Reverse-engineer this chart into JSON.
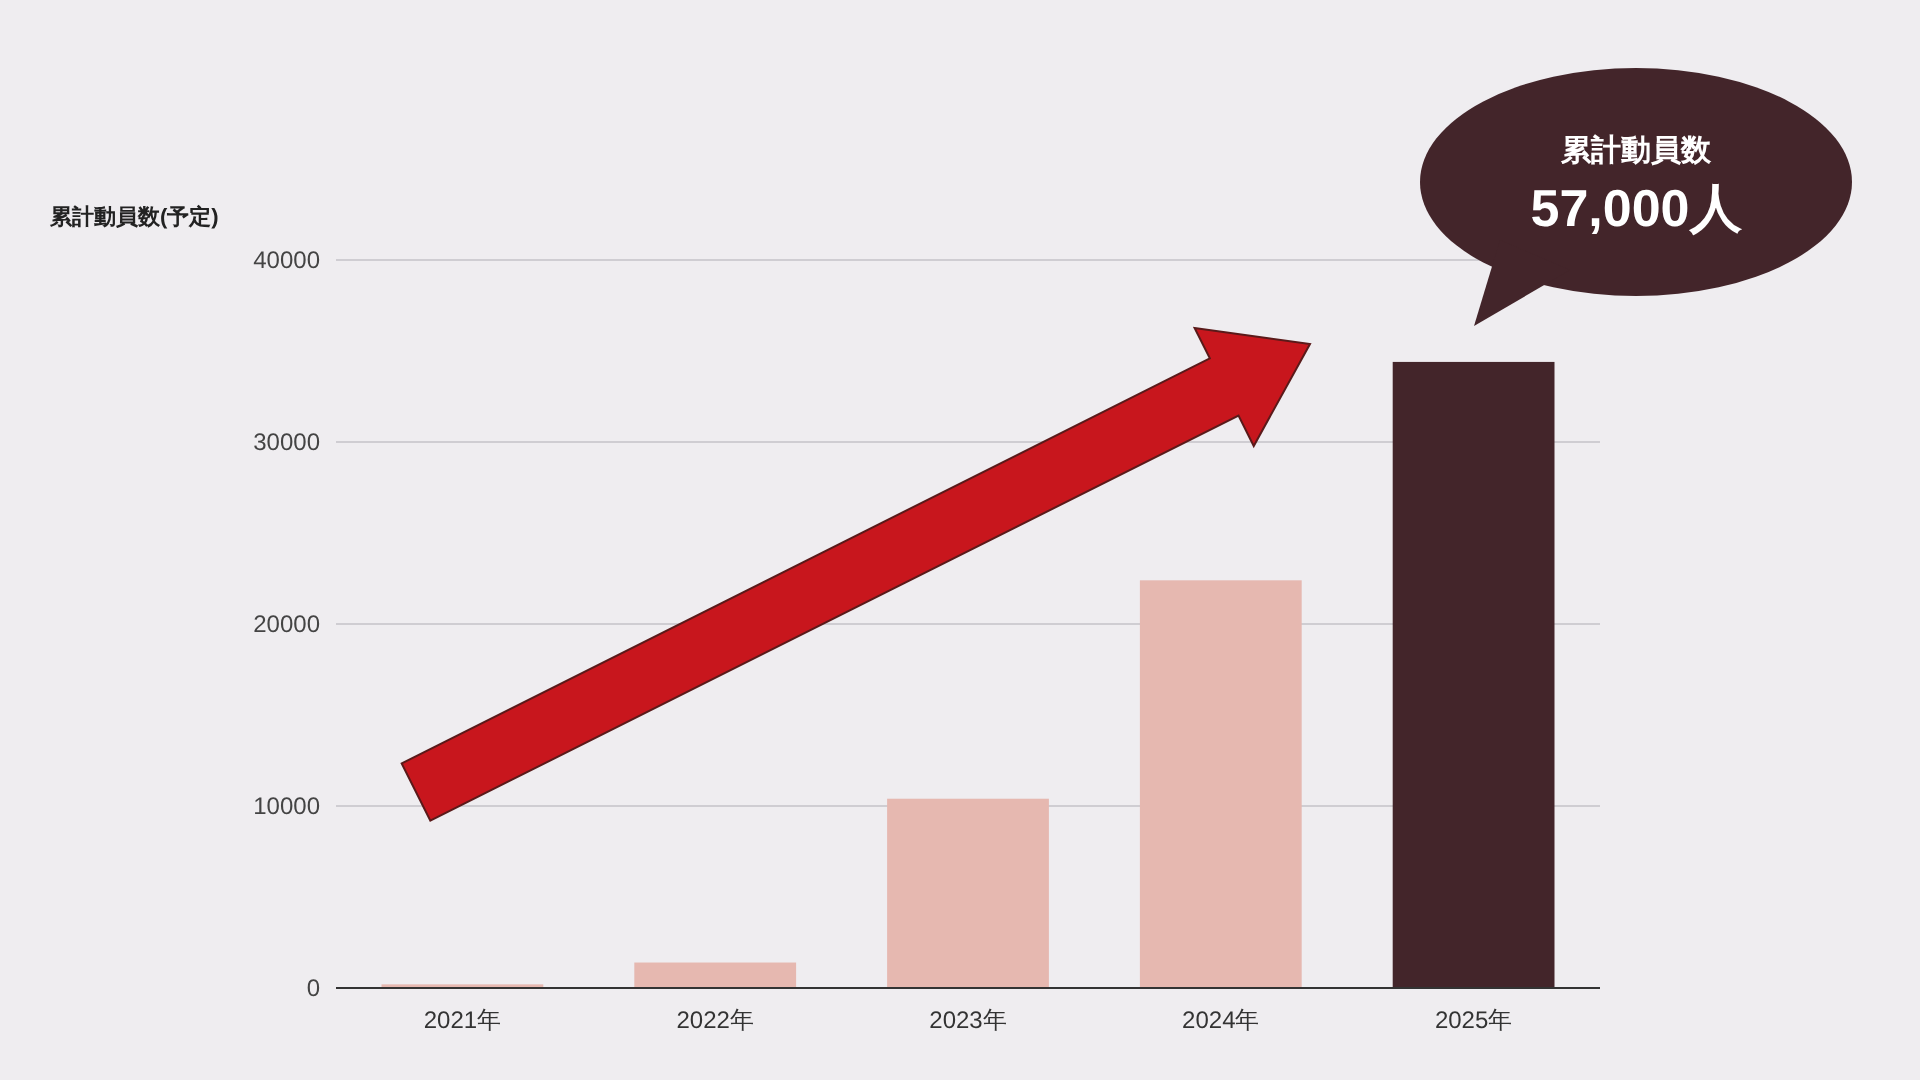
{
  "chart_data": {
    "type": "bar",
    "ylabel": "累計動員数(予定)",
    "categories": [
      "2021年",
      "2022年",
      "2023年",
      "2024年",
      "2025年"
    ],
    "values": [
      200,
      1400,
      10400,
      22400,
      34400
    ],
    "colors": [
      "#e6b8b0",
      "#e6b8b0",
      "#e6b8b0",
      "#e6b8b0",
      "#43252a"
    ],
    "ylim": [
      0,
      40000
    ],
    "yticks": [
      0,
      10000,
      20000,
      30000,
      40000
    ],
    "grid": "y",
    "annotations": [
      "累計動員数",
      "57,000人"
    ]
  }
}
